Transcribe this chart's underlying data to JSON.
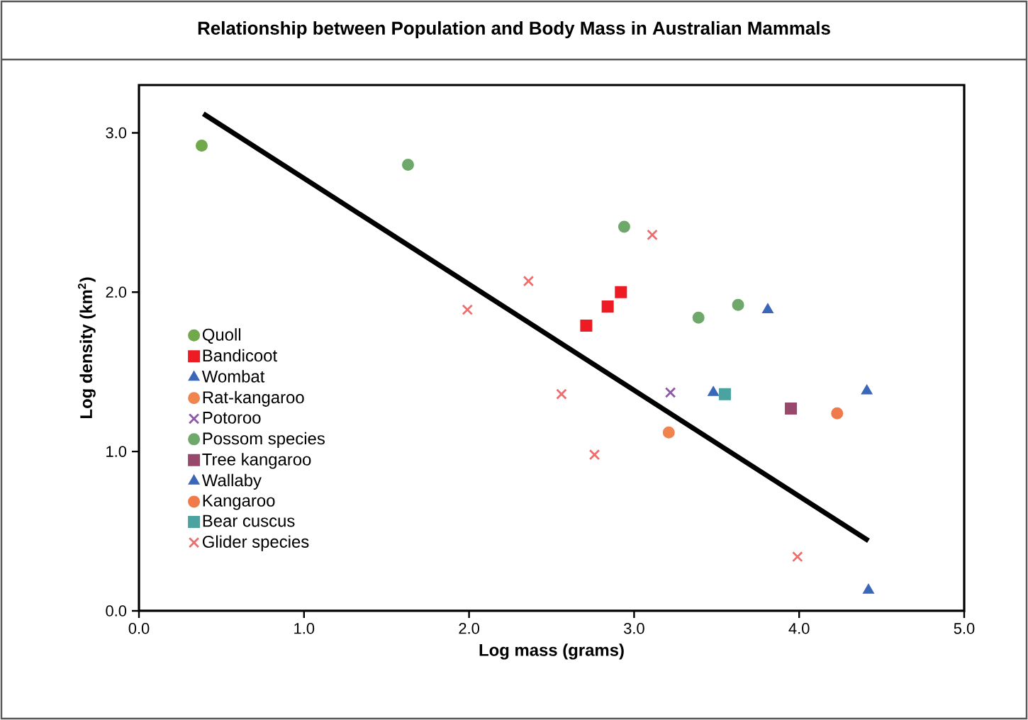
{
  "chart_data": {
    "type": "scatter",
    "title": "Relationship between Population and Body Mass in Australian Mammals",
    "xlabel": "Log mass (grams)",
    "ylabel": "Log density (km$^{2}$)",
    "xlim": [
      0,
      5
    ],
    "ylim": [
      0,
      3.3
    ],
    "xticks": [
      {
        "value": 0,
        "label": "0.0"
      },
      {
        "value": 1,
        "label": "1.0"
      },
      {
        "value": 2,
        "label": "2.0"
      },
      {
        "value": 3,
        "label": "3.0"
      },
      {
        "value": 4,
        "label": "4.0"
      },
      {
        "value": 5,
        "label": "5.0"
      }
    ],
    "yticks": [
      {
        "value": 0,
        "label": "0.0"
      },
      {
        "value": 1,
        "label": "1.0"
      },
      {
        "value": 2,
        "label": "2.0"
      },
      {
        "value": 3,
        "label": "3.0"
      }
    ],
    "legend": "left",
    "grid": false,
    "series": [
      {
        "name": "Quoll",
        "color": "#70a84b",
        "marker": "circle",
        "x": [
          0.38
        ],
        "values": [
          2.92
        ]
      },
      {
        "name": "Bandicoot",
        "color": "#ed1c24",
        "marker": "square",
        "x": [
          2.71,
          2.84,
          2.92
        ],
        "values": [
          1.79,
          1.91,
          2.0
        ]
      },
      {
        "name": "Wombat",
        "color": "#3a67b8",
        "marker": "triangle",
        "x": [
          4.41
        ],
        "values": [
          1.38
        ]
      },
      {
        "name": "Rat-kangaroo",
        "color": "#f0844f",
        "marker": "circle",
        "x": [
          3.21
        ],
        "values": [
          1.12
        ]
      },
      {
        "name": "Potoroo",
        "color": "#8e59a8",
        "marker": "cross",
        "x": [
          3.22
        ],
        "values": [
          1.37
        ]
      },
      {
        "name": "Possom species",
        "color": "#6ea86a",
        "marker": "circle",
        "x": [
          1.63,
          2.94,
          3.39,
          3.63
        ],
        "values": [
          2.8,
          2.41,
          1.84,
          1.92
        ]
      },
      {
        "name": "Tree kangaroo",
        "color": "#98496b",
        "marker": "square",
        "x": [
          3.95
        ],
        "values": [
          1.27
        ]
      },
      {
        "name": "Wallaby",
        "color": "#3a67b8",
        "marker": "triangle",
        "x": [
          3.81,
          3.48,
          4.42
        ],
        "values": [
          1.89,
          1.37,
          0.13
        ]
      },
      {
        "name": "Kangaroo",
        "color": "#f07a4a",
        "marker": "circle",
        "x": [
          4.23
        ],
        "values": [
          1.24
        ]
      },
      {
        "name": "Bear cuscus",
        "color": "#4aa3a0",
        "marker": "square",
        "x": [
          3.55
        ],
        "values": [
          1.36
        ]
      },
      {
        "name": "Glider species",
        "color": "#ee6e6e",
        "marker": "cross",
        "x": [
          3.11,
          2.36,
          1.99,
          2.56,
          2.76,
          3.99
        ],
        "values": [
          2.36,
          2.07,
          1.89,
          1.36,
          0.98,
          0.34
        ]
      },
      {
        "type": "line",
        "color": "#000000",
        "marker": "none",
        "x": [
          0.39,
          4.42
        ],
        "values": [
          3.12,
          0.44
        ]
      }
    ]
  }
}
